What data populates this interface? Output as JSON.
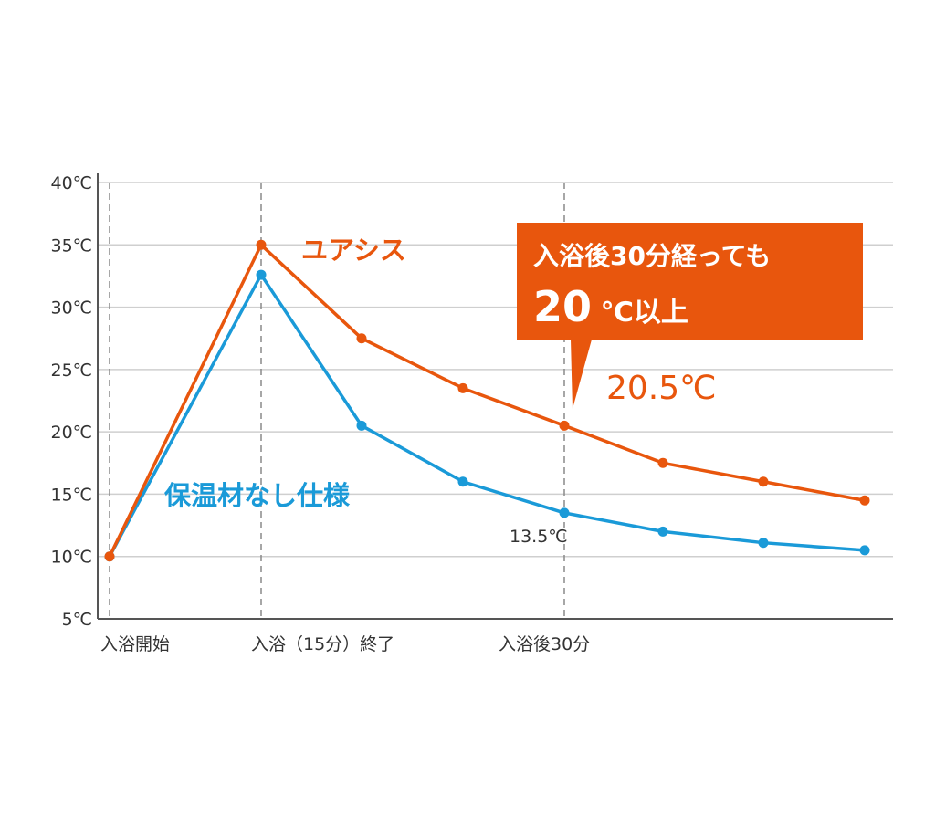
{
  "chart_data": {
    "type": "line",
    "yticks": [
      "5℃",
      "10℃",
      "15℃",
      "20℃",
      "25℃",
      "30℃",
      "35℃",
      "40℃"
    ],
    "ylim": [
      5,
      40
    ],
    "grid": true,
    "categories": [
      "入浴開始",
      "入浴（15分）終了",
      "入浴後30分"
    ],
    "x": [
      0,
      15,
      25,
      35,
      45,
      55,
      65,
      75
    ],
    "series": [
      {
        "name": "ユアシス",
        "color": "#e8560d",
        "values": [
          10,
          35,
          27.5,
          23.5,
          20.5,
          17.5,
          16,
          14.5
        ]
      },
      {
        "name": "保温材なし仕様",
        "color": "#1a9ad8",
        "values": [
          10,
          32.6,
          20.5,
          16,
          13.5,
          12,
          11.1,
          10.5
        ]
      }
    ],
    "annotations": {
      "callout_line1": "入浴後30分経っても",
      "callout_line2_num": "20",
      "callout_line2_rest": "℃以上",
      "orange_value": "20.5℃",
      "blue_value": "13.5℃"
    }
  }
}
